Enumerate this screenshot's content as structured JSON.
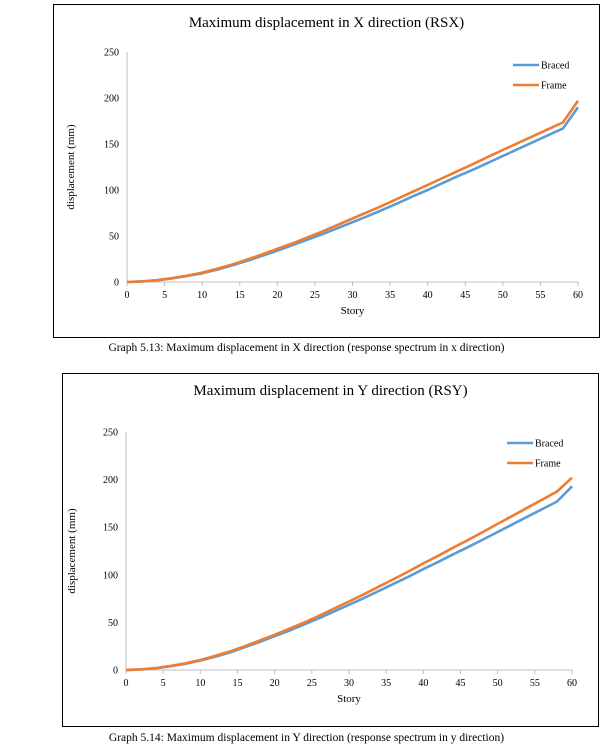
{
  "colors": {
    "braced": "#5B9BD5",
    "frame": "#ED7D31",
    "axis": "#BFBFBF"
  },
  "captions": {
    "graph1": "Graph 5.13: Maximum displacement in X direction (response spectrum in x direction)",
    "graph2": "Graph 5.14: Maximum displacement in Y direction (response spectrum in y direction)"
  },
  "chart_data": [
    {
      "type": "line",
      "title": "Maximum displacement in X direction (RSX)",
      "xlabel": "Story",
      "ylabel": "displacement (mm)",
      "xlim": [
        0,
        60
      ],
      "ylim": [
        0,
        250
      ],
      "xticks": [
        0,
        5,
        10,
        15,
        20,
        25,
        30,
        35,
        40,
        45,
        50,
        55,
        60
      ],
      "yticks": [
        0,
        50,
        100,
        150,
        200,
        250
      ],
      "grid": false,
      "legend": "top-right",
      "x": [
        0,
        2,
        4,
        6,
        8,
        10,
        12,
        14,
        16,
        18,
        20,
        22,
        24,
        26,
        28,
        30,
        32,
        34,
        36,
        38,
        40,
        42,
        44,
        46,
        48,
        50,
        52,
        54,
        56,
        58,
        60
      ],
      "series": [
        {
          "name": "Braced",
          "values": [
            0,
            0.6,
            1.8,
            4,
            6.5,
            9.5,
            13.5,
            18,
            23,
            28.5,
            34,
            40,
            46,
            52,
            58.5,
            65,
            71.5,
            78.5,
            85.5,
            93,
            100,
            107.5,
            115,
            122,
            129.5,
            137,
            144.5,
            152,
            159.5,
            167,
            190
          ]
        },
        {
          "name": "Frame",
          "values": [
            0,
            0.6,
            2,
            4.2,
            7,
            10.2,
            14.5,
            19,
            24.5,
            30,
            36,
            42,
            48.5,
            55,
            62,
            69,
            76,
            83,
            90.5,
            98,
            105.5,
            113,
            120.5,
            128,
            136,
            143.5,
            151,
            158.5,
            166,
            173.5,
            197
          ]
        }
      ]
    },
    {
      "type": "line",
      "title": "Maximum displacement in Y direction (RSY)",
      "xlabel": "Story",
      "ylabel": "displacement (mm)",
      "xlim": [
        0,
        60
      ],
      "ylim": [
        0,
        250
      ],
      "xticks": [
        0,
        5,
        10,
        15,
        20,
        25,
        30,
        35,
        40,
        45,
        50,
        55,
        60
      ],
      "yticks": [
        0,
        50,
        100,
        150,
        200,
        250
      ],
      "grid": false,
      "legend": "top-right",
      "x": [
        0,
        2,
        4,
        6,
        8,
        10,
        12,
        14,
        16,
        18,
        20,
        22,
        24,
        26,
        28,
        30,
        32,
        34,
        36,
        38,
        40,
        42,
        44,
        46,
        48,
        50,
        52,
        54,
        56,
        58,
        60
      ],
      "series": [
        {
          "name": "Braced",
          "values": [
            0,
            0.6,
            1.8,
            4,
            6.5,
            10,
            14,
            18.5,
            24,
            29.5,
            35.5,
            41.5,
            48,
            54.5,
            61.5,
            68.5,
            75.5,
            83,
            90.5,
            98,
            106,
            113.5,
            121.5,
            129,
            137,
            145,
            153,
            161,
            169,
            177,
            193
          ]
        },
        {
          "name": "Frame",
          "values": [
            0,
            0.6,
            2,
            4.3,
            7,
            10.5,
            14.8,
            19.5,
            25,
            31,
            37,
            43.5,
            50,
            57,
            64.5,
            72,
            79.5,
            87.5,
            95.5,
            103.5,
            112,
            120,
            128.5,
            136.5,
            145,
            153.5,
            162,
            170.5,
            179,
            187.5,
            202
          ]
        }
      ]
    }
  ]
}
